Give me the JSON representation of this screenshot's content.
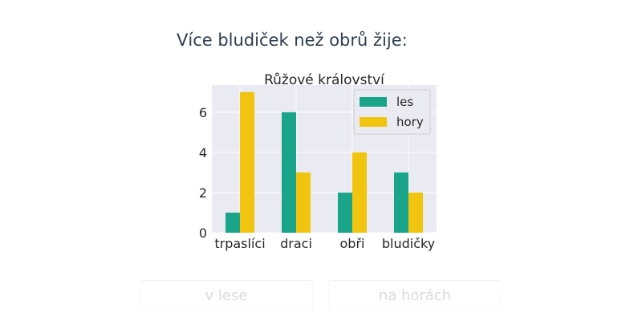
{
  "question": {
    "text": "Více bludiček než obrů žije:"
  },
  "chart_data": {
    "type": "bar",
    "title": "Růžové království",
    "categories": [
      "trpaslíci",
      "draci",
      "obři",
      "bludičky"
    ],
    "series": [
      {
        "name": "les",
        "values": [
          1,
          6,
          2,
          3
        ],
        "color": "#1aa58a"
      },
      {
        "name": "hory",
        "values": [
          7,
          3,
          4,
          2
        ],
        "color": "#f1c40f"
      }
    ],
    "yticks": [
      0,
      2,
      4,
      6
    ],
    "ylim": [
      0,
      7.35
    ],
    "xlabel": "",
    "ylabel": "",
    "grid": true,
    "legend_position": "top-right",
    "background": "#eaeaf2"
  },
  "answers": [
    {
      "label": "v lese"
    },
    {
      "label": "na horách"
    }
  ]
}
